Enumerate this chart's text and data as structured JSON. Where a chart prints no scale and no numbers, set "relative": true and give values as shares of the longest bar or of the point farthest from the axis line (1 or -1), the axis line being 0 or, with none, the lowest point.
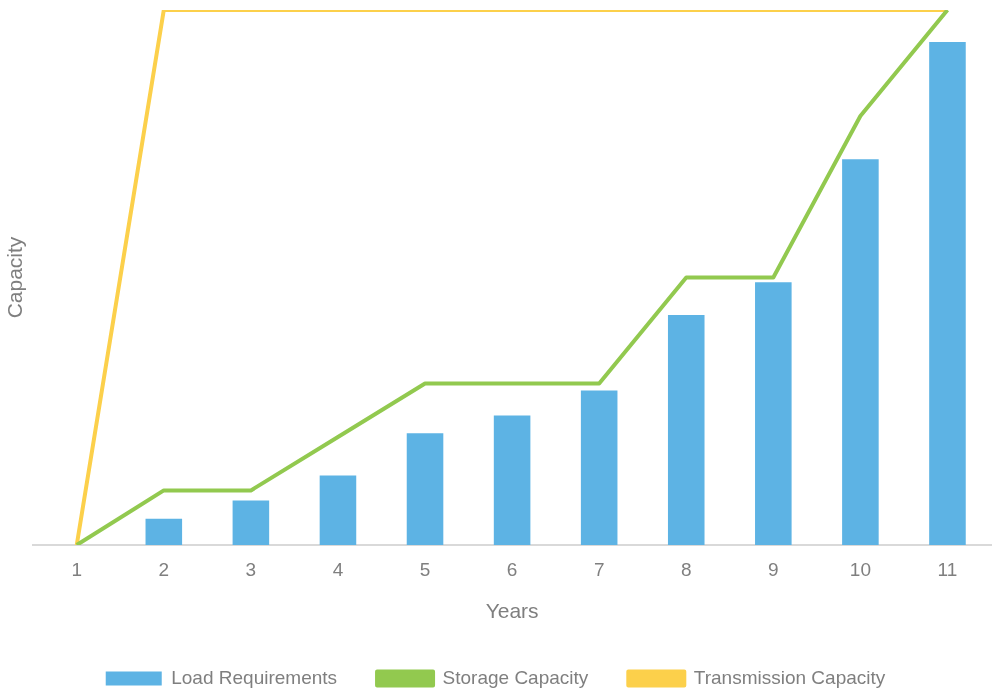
{
  "chart_data": {
    "type": "bar",
    "xlabel": "Years",
    "ylabel": "Capacity",
    "relative": true,
    "grid": false,
    "legend": "bottom",
    "categories": [
      "1",
      "2",
      "3",
      "4",
      "5",
      "6",
      "7",
      "8",
      "9",
      "10",
      "11"
    ],
    "series": [
      {
        "name": "Load Requirements",
        "type": "bar",
        "color": "#5db3e4",
        "values": [
          0,
          0.049,
          0.083,
          0.13,
          0.209,
          0.242,
          0.289,
          0.43,
          0.491,
          0.721,
          0.94
        ]
      },
      {
        "name": "Storage Capacity",
        "type": "line",
        "color": "#92c94f",
        "values": [
          0,
          0.102,
          0.102,
          0.202,
          0.302,
          0.302,
          0.302,
          0.5,
          0.5,
          0.802,
          1
        ]
      },
      {
        "name": "Transmission Capacity",
        "type": "line",
        "color": "#fcd04b",
        "values": [
          0,
          1,
          1,
          1,
          1,
          1,
          1,
          1,
          1,
          1,
          1
        ]
      }
    ]
  }
}
